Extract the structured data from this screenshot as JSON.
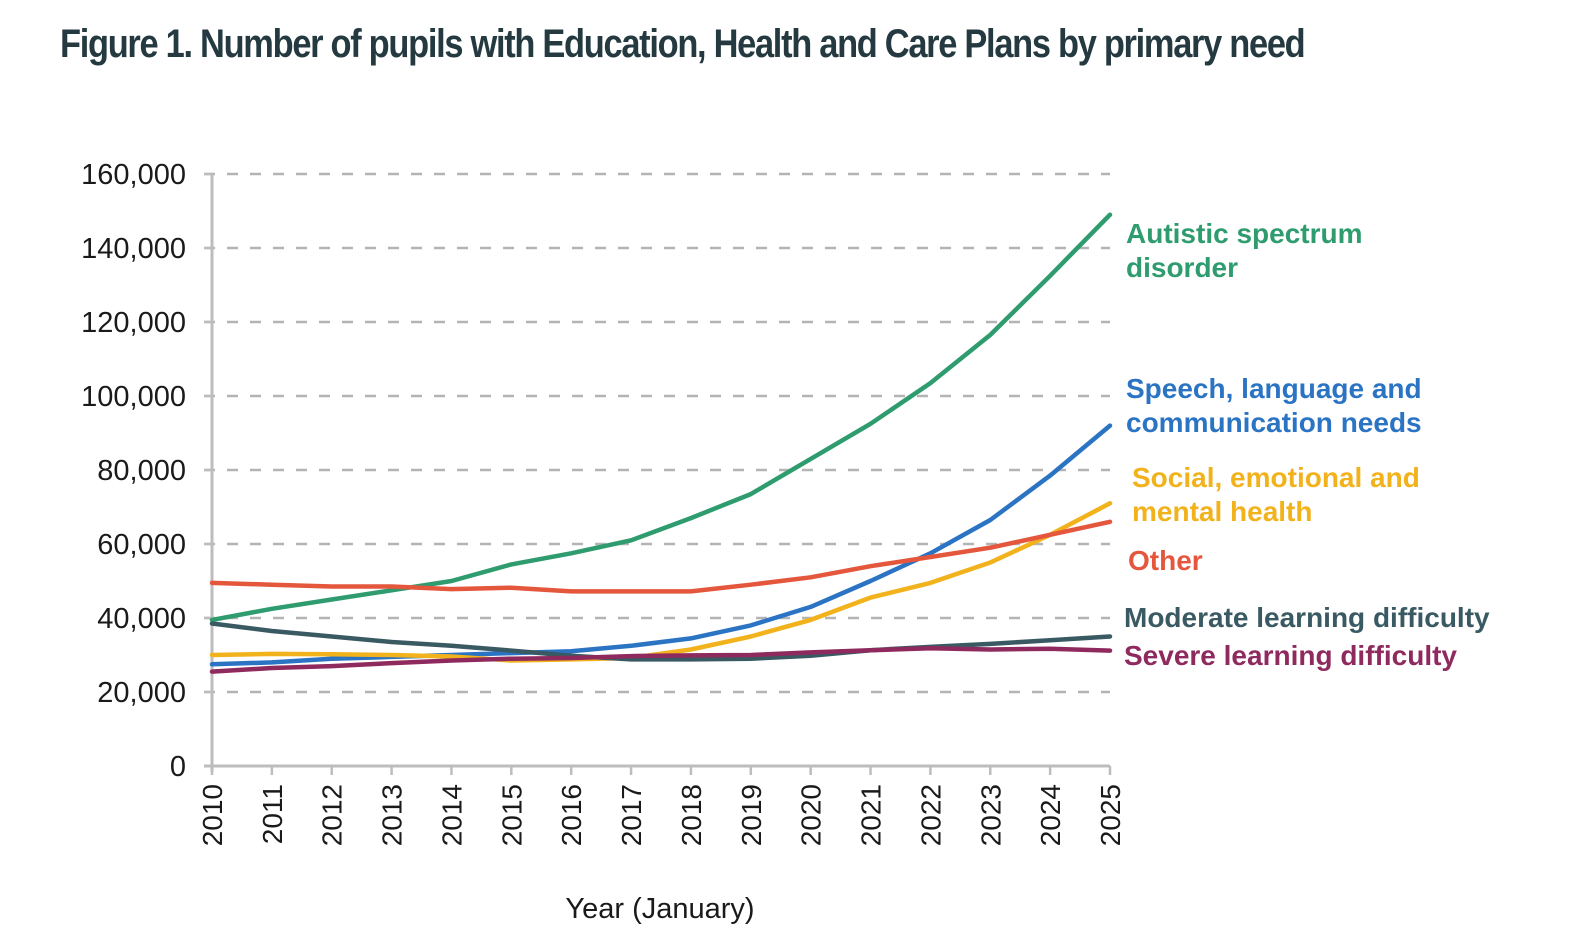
{
  "chart_data": {
    "type": "line",
    "title": "Figure 1. Number of pupils with Education, Health and Care Plans by primary need",
    "xlabel": "Year (January)",
    "ylabel": "",
    "ylim": [
      0,
      160000
    ],
    "yticks": [
      0,
      20000,
      40000,
      60000,
      80000,
      100000,
      120000,
      140000,
      160000
    ],
    "ytick_labels": [
      "0",
      "20,000",
      "40,000",
      "60,000",
      "80,000",
      "100,000",
      "120,000",
      "140,000",
      "160,000"
    ],
    "grid": "horizontal-dashed",
    "legend": "inline-right",
    "x": [
      "2010",
      "2011",
      "2012",
      "2013",
      "2014",
      "2015",
      "2016",
      "2017",
      "2018",
      "2019",
      "2020",
      "2021",
      "2022",
      "2023",
      "2024",
      "2025"
    ],
    "series": [
      {
        "name": "Autistic spectrum disorder",
        "label_lines": [
          "Autistic spectrum",
          "disorder"
        ],
        "color": "#2e9c6e",
        "values": [
          39500,
          42500,
          45000,
          47500,
          50000,
          54500,
          57500,
          61000,
          67000,
          73500,
          83000,
          92500,
          103500,
          116500,
          132500,
          149000
        ]
      },
      {
        "name": "Speech, language and communication needs",
        "label_lines": [
          "Speech, language and",
          "communication needs"
        ],
        "color": "#2b74c4",
        "values": [
          27500,
          28000,
          29000,
          29500,
          30000,
          30500,
          31000,
          32500,
          34500,
          38000,
          43000,
          50000,
          57500,
          66500,
          78500,
          92000
        ]
      },
      {
        "name": "Social, emotional and mental health",
        "label_lines": [
          "Social, emotional and",
          "mental health"
        ],
        "color": "#f2b21c",
        "values": [
          30000,
          30300,
          30200,
          30000,
          29600,
          28500,
          28800,
          29200,
          31500,
          35000,
          39500,
          45500,
          49500,
          55000,
          62500,
          71000
        ]
      },
      {
        "name": "Other",
        "label_lines": [
          "Other"
        ],
        "color": "#e4573d",
        "values": [
          49500,
          49000,
          48500,
          48500,
          47800,
          48200,
          47200,
          47200,
          47200,
          49000,
          51000,
          54000,
          56500,
          59000,
          62500,
          66000
        ]
      },
      {
        "name": "Moderate learning difficulty",
        "label_lines": [
          "Moderate learning difficulty"
        ],
        "color": "#3a5a63",
        "values": [
          38500,
          36500,
          35000,
          33500,
          32500,
          31200,
          29800,
          28800,
          28800,
          29000,
          29800,
          31300,
          32200,
          33000,
          34000,
          35000
        ]
      },
      {
        "name": "Severe learning difficulty",
        "label_lines": [
          "Severe learning difficulty"
        ],
        "color": "#8f2a5e",
        "values": [
          25500,
          26500,
          27000,
          27800,
          28500,
          29000,
          29200,
          29700,
          29900,
          30000,
          30700,
          31300,
          31800,
          31500,
          31700,
          31200
        ]
      }
    ]
  }
}
